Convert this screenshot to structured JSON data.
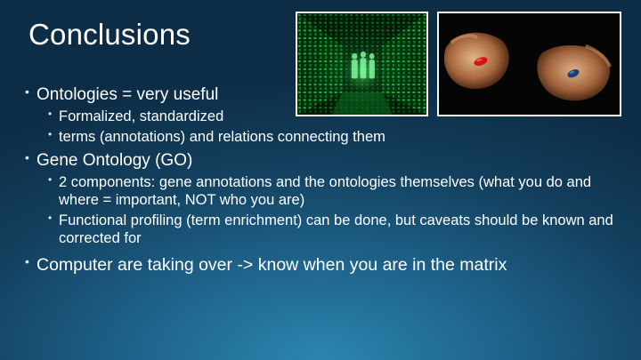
{
  "slide": {
    "title": "Conclusions",
    "images": {
      "left": "matrix-code-corridor-image",
      "right": "red-blue-pill-hands-image"
    },
    "bullets": {
      "b1": "Ontologies = very useful",
      "b1_sub1": "Formalized, standardized",
      "b1_sub2": "terms (annotations) and relations connecting them",
      "b2": "Gene Ontology (GO)",
      "b2_sub1": "2 components: gene annotations and the ontologies themselves (what you do and where = important, NOT who you are)",
      "b2_sub2": "Functional profiling (term enrichment) can be done, but caveats should be known and corrected for",
      "b3": "Computer are taking over -> know when you are in the matrix"
    }
  },
  "colors": {
    "background_center": "#2b86b0",
    "background_edge": "#0d2c45",
    "text": "#ffffff"
  }
}
